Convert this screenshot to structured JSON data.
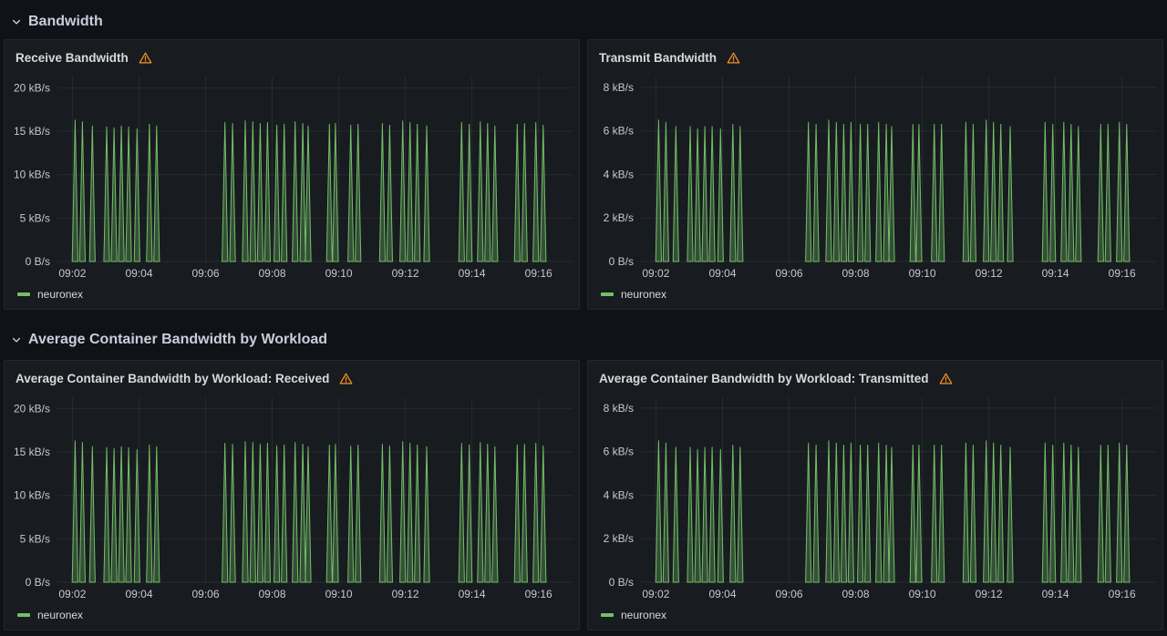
{
  "theme": {
    "page_bg": "#111217",
    "panel_bg": "#181b1f",
    "panel_border": "#25272e",
    "text_primary": "#d8d9da",
    "text_axis": "#c7c8d1",
    "grid": "rgba(204,204,220,0.09)",
    "series_green": "#73bf69",
    "series_green_fill": "rgba(115,191,105,0.32)",
    "warning_orange": "#f79520"
  },
  "sections": [
    {
      "title": "Bandwidth",
      "panels": [
        {
          "title": "Receive Bandwidth",
          "chart_index": 0
        },
        {
          "title": "Transmit Bandwidth",
          "chart_index": 1
        }
      ]
    },
    {
      "title": "Average Container Bandwidth by Workload",
      "panels": [
        {
          "title": "Average Container Bandwidth by Workload: Received",
          "chart_index": 2
        },
        {
          "title": "Average Container Bandwidth by Workload: Transmitted",
          "chart_index": 3
        }
      ]
    }
  ],
  "chart_data": [
    {
      "type": "area",
      "title": "Receive Bandwidth",
      "xlabel": "",
      "ylabel": "",
      "x_unit": "minutes after 09:00",
      "y_unit": "kB/s",
      "xlim": [
        1.55,
        17.05
      ],
      "ylim": [
        0,
        21.3
      ],
      "x_ticks": [
        2,
        4,
        6,
        8,
        10,
        12,
        14,
        16
      ],
      "x_tick_labels": [
        "09:02",
        "09:04",
        "09:06",
        "09:08",
        "09:10",
        "09:12",
        "09:14",
        "09:16"
      ],
      "y_ticks": [
        0,
        5,
        10,
        15,
        20
      ],
      "y_tick_labels": [
        "0 B/s",
        "5 kB/s",
        "10 kB/s",
        "15 kB/s",
        "20 kB/s"
      ],
      "grid": true,
      "legend_position": "bottom",
      "series": [
        {
          "name": "neuronex",
          "color": "#73bf69",
          "fill": "rgba(115,191,105,0.32)",
          "spike_half_width_min": 0.085,
          "points_t_min_v_kBps": [
            [
              2.08,
              16.3
            ],
            [
              2.3,
              16.1
            ],
            [
              2.6,
              15.6
            ],
            [
              3.03,
              15.5
            ],
            [
              3.25,
              15.4
            ],
            [
              3.47,
              15.6
            ],
            [
              3.69,
              15.5
            ],
            [
              3.94,
              15.3
            ],
            [
              4.31,
              15.8
            ],
            [
              4.53,
              15.6
            ],
            [
              6.58,
              16.0
            ],
            [
              6.81,
              15.9
            ],
            [
              7.19,
              16.2
            ],
            [
              7.42,
              16.1
            ],
            [
              7.64,
              15.9
            ],
            [
              7.86,
              16.0
            ],
            [
              8.14,
              15.7
            ],
            [
              8.36,
              15.8
            ],
            [
              8.69,
              16.1
            ],
            [
              8.92,
              15.9
            ],
            [
              9.08,
              15.6
            ],
            [
              9.72,
              15.8
            ],
            [
              9.9,
              15.9
            ],
            [
              10.36,
              15.7
            ],
            [
              10.58,
              15.8
            ],
            [
              11.31,
              15.9
            ],
            [
              11.53,
              15.7
            ],
            [
              11.92,
              16.2
            ],
            [
              12.14,
              16.0
            ],
            [
              12.36,
              15.8
            ],
            [
              12.64,
              15.6
            ],
            [
              13.69,
              16.0
            ],
            [
              13.92,
              15.8
            ],
            [
              14.25,
              16.1
            ],
            [
              14.47,
              15.9
            ],
            [
              14.69,
              15.6
            ],
            [
              15.36,
              15.8
            ],
            [
              15.58,
              15.9
            ],
            [
              15.92,
              16.0
            ],
            [
              16.14,
              15.7
            ]
          ]
        }
      ]
    },
    {
      "type": "area",
      "title": "Transmit Bandwidth",
      "xlabel": "",
      "ylabel": "",
      "x_unit": "minutes after 09:00",
      "y_unit": "kB/s",
      "xlim": [
        1.55,
        17.05
      ],
      "ylim": [
        0,
        8.5
      ],
      "x_ticks": [
        2,
        4,
        6,
        8,
        10,
        12,
        14,
        16
      ],
      "x_tick_labels": [
        "09:02",
        "09:04",
        "09:06",
        "09:08",
        "09:10",
        "09:12",
        "09:14",
        "09:16"
      ],
      "y_ticks": [
        0,
        2,
        4,
        6,
        8
      ],
      "y_tick_labels": [
        "0 B/s",
        "2 kB/s",
        "4 kB/s",
        "6 kB/s",
        "8 kB/s"
      ],
      "grid": true,
      "legend_position": "bottom",
      "series": [
        {
          "name": "neuronex",
          "color": "#73bf69",
          "fill": "rgba(115,191,105,0.32)",
          "spike_half_width_min": 0.085,
          "points_t_min_v_kBps": [
            [
              2.08,
              6.5
            ],
            [
              2.3,
              6.4
            ],
            [
              2.6,
              6.2
            ],
            [
              3.03,
              6.2
            ],
            [
              3.25,
              6.1
            ],
            [
              3.47,
              6.2
            ],
            [
              3.69,
              6.2
            ],
            [
              3.94,
              6.1
            ],
            [
              4.31,
              6.3
            ],
            [
              4.53,
              6.2
            ],
            [
              6.58,
              6.4
            ],
            [
              6.81,
              6.3
            ],
            [
              7.19,
              6.5
            ],
            [
              7.42,
              6.4
            ],
            [
              7.64,
              6.3
            ],
            [
              7.86,
              6.4
            ],
            [
              8.14,
              6.3
            ],
            [
              8.36,
              6.3
            ],
            [
              8.69,
              6.4
            ],
            [
              8.92,
              6.3
            ],
            [
              9.08,
              6.2
            ],
            [
              9.72,
              6.3
            ],
            [
              9.9,
              6.3
            ],
            [
              10.36,
              6.3
            ],
            [
              10.58,
              6.3
            ],
            [
              11.31,
              6.4
            ],
            [
              11.53,
              6.3
            ],
            [
              11.92,
              6.5
            ],
            [
              12.14,
              6.4
            ],
            [
              12.36,
              6.3
            ],
            [
              12.64,
              6.2
            ],
            [
              13.69,
              6.4
            ],
            [
              13.92,
              6.3
            ],
            [
              14.25,
              6.4
            ],
            [
              14.47,
              6.3
            ],
            [
              14.69,
              6.2
            ],
            [
              15.36,
              6.3
            ],
            [
              15.58,
              6.3
            ],
            [
              15.92,
              6.4
            ],
            [
              16.14,
              6.3
            ]
          ]
        }
      ]
    },
    {
      "type": "area",
      "title": "Average Container Bandwidth by Workload: Received",
      "xlabel": "",
      "ylabel": "",
      "x_unit": "minutes after 09:00",
      "y_unit": "kB/s",
      "xlim": [
        1.55,
        17.05
      ],
      "ylim": [
        0,
        21.3
      ],
      "x_ticks": [
        2,
        4,
        6,
        8,
        10,
        12,
        14,
        16
      ],
      "x_tick_labels": [
        "09:02",
        "09:04",
        "09:06",
        "09:08",
        "09:10",
        "09:12",
        "09:14",
        "09:16"
      ],
      "y_ticks": [
        0,
        5,
        10,
        15,
        20
      ],
      "y_tick_labels": [
        "0 B/s",
        "5 kB/s",
        "10 kB/s",
        "15 kB/s",
        "20 kB/s"
      ],
      "grid": true,
      "legend_position": "bottom",
      "series": [
        {
          "name": "neuronex",
          "color": "#73bf69",
          "fill": "rgba(115,191,105,0.32)",
          "spike_half_width_min": 0.085,
          "points_t_min_v_kBps": [
            [
              2.08,
              16.3
            ],
            [
              2.3,
              16.1
            ],
            [
              2.6,
              15.6
            ],
            [
              3.03,
              15.5
            ],
            [
              3.25,
              15.4
            ],
            [
              3.47,
              15.6
            ],
            [
              3.69,
              15.5
            ],
            [
              3.94,
              15.3
            ],
            [
              4.31,
              15.8
            ],
            [
              4.53,
              15.6
            ],
            [
              6.58,
              16.0
            ],
            [
              6.81,
              15.9
            ],
            [
              7.19,
              16.2
            ],
            [
              7.42,
              16.1
            ],
            [
              7.64,
              15.9
            ],
            [
              7.86,
              16.0
            ],
            [
              8.14,
              15.7
            ],
            [
              8.36,
              15.8
            ],
            [
              8.69,
              16.1
            ],
            [
              8.92,
              15.9
            ],
            [
              9.08,
              15.6
            ],
            [
              9.72,
              15.8
            ],
            [
              9.9,
              15.9
            ],
            [
              10.36,
              15.7
            ],
            [
              10.58,
              15.8
            ],
            [
              11.31,
              15.9
            ],
            [
              11.53,
              15.7
            ],
            [
              11.92,
              16.2
            ],
            [
              12.14,
              16.0
            ],
            [
              12.36,
              15.8
            ],
            [
              12.64,
              15.6
            ],
            [
              13.69,
              16.0
            ],
            [
              13.92,
              15.8
            ],
            [
              14.25,
              16.1
            ],
            [
              14.47,
              15.9
            ],
            [
              14.69,
              15.6
            ],
            [
              15.36,
              15.8
            ],
            [
              15.58,
              15.9
            ],
            [
              15.92,
              16.0
            ],
            [
              16.14,
              15.7
            ]
          ]
        }
      ]
    },
    {
      "type": "area",
      "title": "Average Container Bandwidth by Workload: Transmitted",
      "xlabel": "",
      "ylabel": "",
      "x_unit": "minutes after 09:00",
      "y_unit": "kB/s",
      "xlim": [
        1.55,
        17.05
      ],
      "ylim": [
        0,
        8.5
      ],
      "x_ticks": [
        2,
        4,
        6,
        8,
        10,
        12,
        14,
        16
      ],
      "x_tick_labels": [
        "09:02",
        "09:04",
        "09:06",
        "09:08",
        "09:10",
        "09:12",
        "09:14",
        "09:16"
      ],
      "y_ticks": [
        0,
        2,
        4,
        6,
        8
      ],
      "y_tick_labels": [
        "0 B/s",
        "2 kB/s",
        "4 kB/s",
        "6 kB/s",
        "8 kB/s"
      ],
      "grid": true,
      "legend_position": "bottom",
      "series": [
        {
          "name": "neuronex",
          "color": "#73bf69",
          "fill": "rgba(115,191,105,0.32)",
          "spike_half_width_min": 0.085,
          "points_t_min_v_kBps": [
            [
              2.08,
              6.5
            ],
            [
              2.3,
              6.4
            ],
            [
              2.6,
              6.2
            ],
            [
              3.03,
              6.2
            ],
            [
              3.25,
              6.1
            ],
            [
              3.47,
              6.2
            ],
            [
              3.69,
              6.2
            ],
            [
              3.94,
              6.1
            ],
            [
              4.31,
              6.3
            ],
            [
              4.53,
              6.2
            ],
            [
              6.58,
              6.4
            ],
            [
              6.81,
              6.3
            ],
            [
              7.19,
              6.5
            ],
            [
              7.42,
              6.4
            ],
            [
              7.64,
              6.3
            ],
            [
              7.86,
              6.4
            ],
            [
              8.14,
              6.3
            ],
            [
              8.36,
              6.3
            ],
            [
              8.69,
              6.4
            ],
            [
              8.92,
              6.3
            ],
            [
              9.08,
              6.2
            ],
            [
              9.72,
              6.3
            ],
            [
              9.9,
              6.3
            ],
            [
              10.36,
              6.3
            ],
            [
              10.58,
              6.3
            ],
            [
              11.31,
              6.4
            ],
            [
              11.53,
              6.3
            ],
            [
              11.92,
              6.5
            ],
            [
              12.14,
              6.4
            ],
            [
              12.36,
              6.3
            ],
            [
              12.64,
              6.2
            ],
            [
              13.69,
              6.4
            ],
            [
              13.92,
              6.3
            ],
            [
              14.25,
              6.4
            ],
            [
              14.47,
              6.3
            ],
            [
              14.69,
              6.2
            ],
            [
              15.36,
              6.3
            ],
            [
              15.58,
              6.3
            ],
            [
              15.92,
              6.4
            ],
            [
              16.14,
              6.3
            ]
          ]
        }
      ]
    }
  ]
}
